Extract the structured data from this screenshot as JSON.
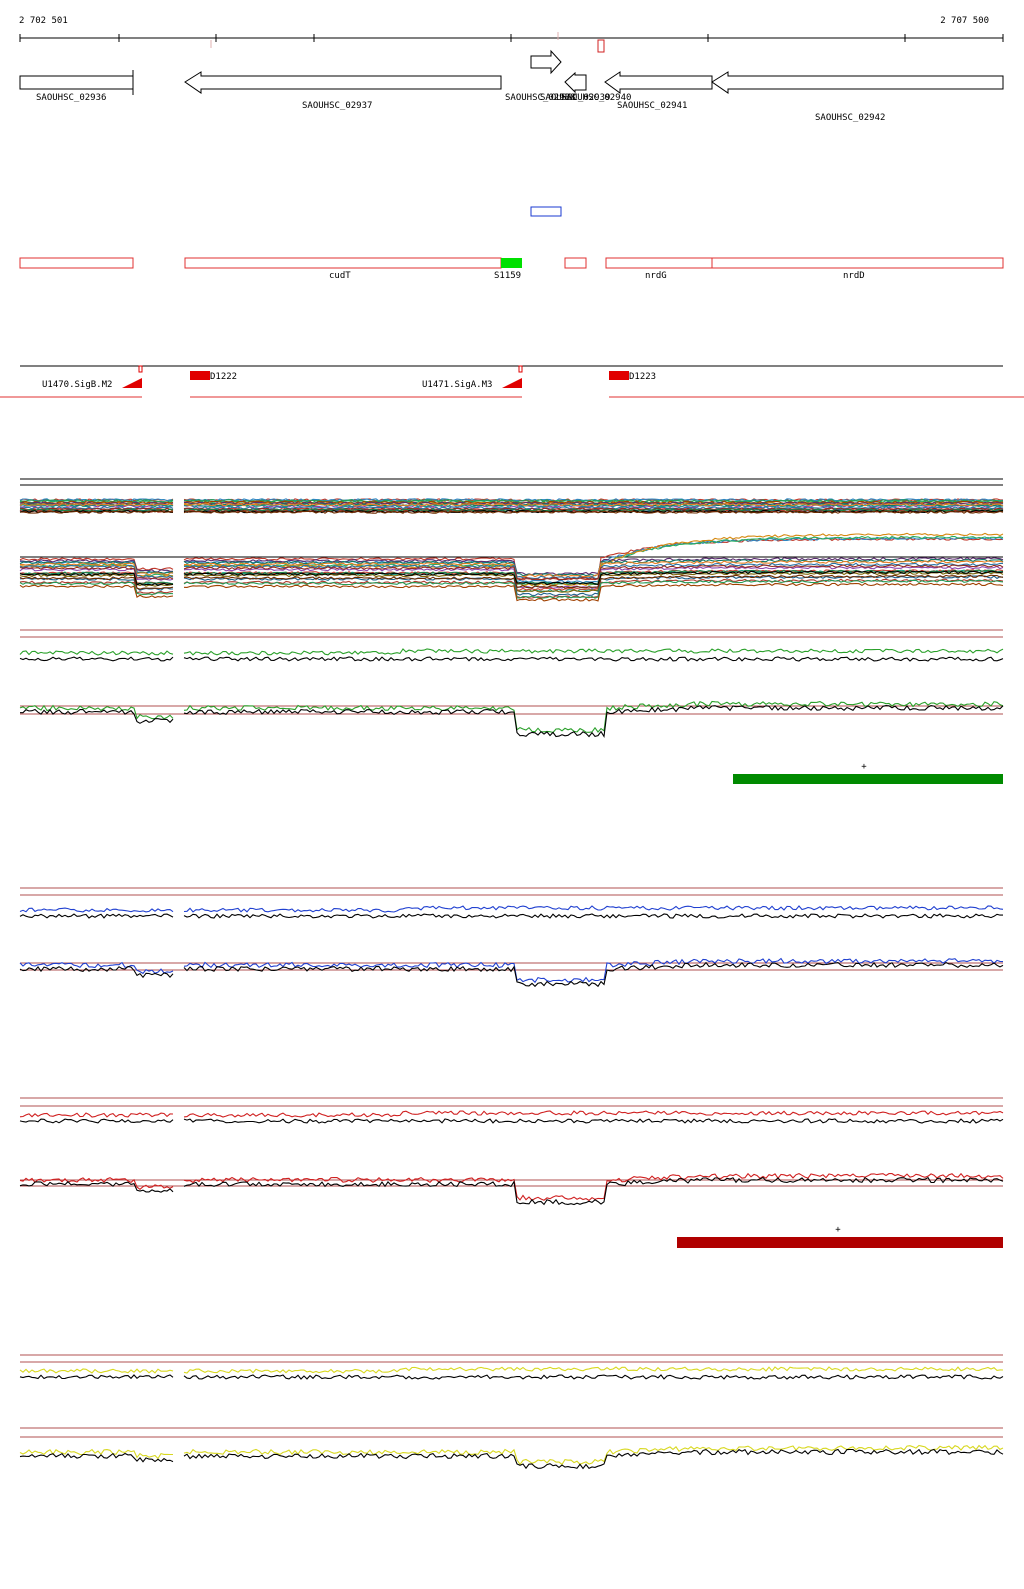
{
  "coords": {
    "start": "2 702 501",
    "end": "2 707 500"
  },
  "genes": [
    {
      "label": "SAOUHSC_02936",
      "dir": "right"
    },
    {
      "label": "SAOUHSC_02937",
      "dir": "left"
    },
    {
      "label": "SAOUHSC_02938",
      "dir": "right"
    },
    {
      "label": "SAOUHSC_02939",
      "dir": "left"
    },
    {
      "label": "SAOUHSC_02940",
      "dir": "left"
    },
    {
      "label": "SAOUHSC_02941",
      "dir": "left"
    },
    {
      "label": "SAOUHSC_02942",
      "dir": "left"
    }
  ],
  "features": [
    {
      "label": "cudT"
    },
    {
      "label": "S1159"
    },
    {
      "label": "nrdG"
    },
    {
      "label": "nrdD"
    }
  ],
  "promoters": [
    {
      "label": "U1470.SigB.M2"
    },
    {
      "label": "U1471.SigA.M3"
    }
  ],
  "terminators": [
    {
      "label": "D1222"
    },
    {
      "label": "D1223"
    }
  ],
  "strand_markers": [
    {
      "text": "+"
    },
    {
      "text": "+"
    }
  ],
  "colors": {
    "gene_outline": "#000000",
    "feature_outline": "#e03030",
    "srna_fill": "#00e000",
    "blue_box": "#1a3ad0",
    "track_green": "#2aa02a",
    "track_blue": "#2040d0",
    "track_red": "#d02020",
    "track_yellow": "#d8d820",
    "bar_green": "#008a00",
    "bar_darkred": "#b00000",
    "ref_line": "#b05050"
  }
}
